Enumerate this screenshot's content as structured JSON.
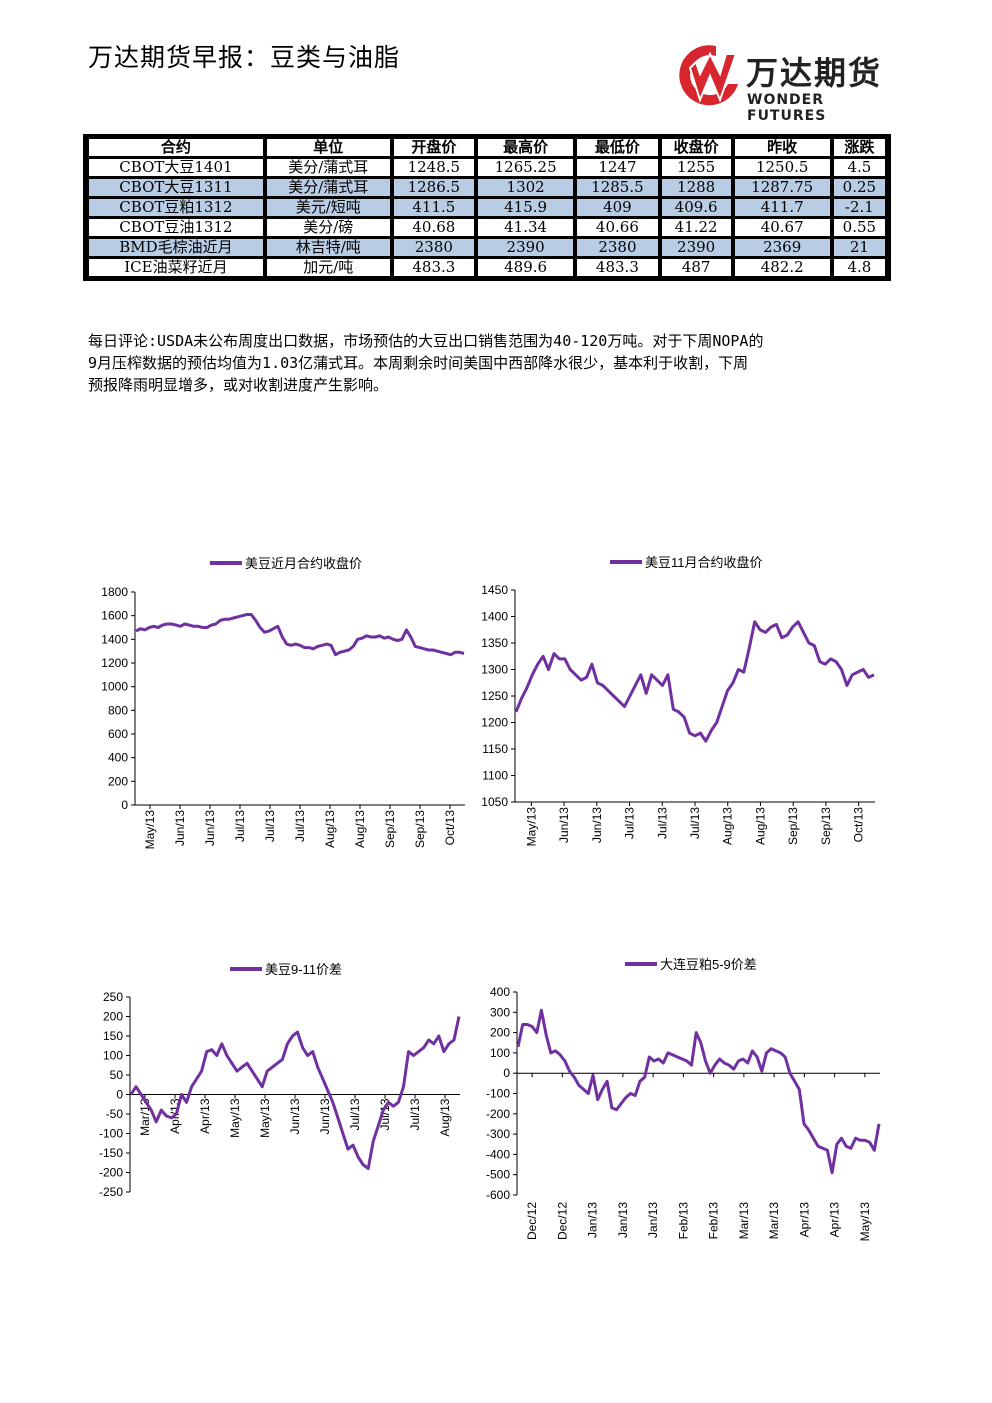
{
  "header": {
    "title": "万达期货早报：豆类与油脂",
    "logo_cn": "万达期货",
    "logo_en": "WONDER FUTURES"
  },
  "table": {
    "headers": [
      "合约",
      "单位",
      "开盘价",
      "最高价",
      "最低价",
      "收盘价",
      "昨收",
      "涨跌"
    ],
    "rows": [
      {
        "highlight": false,
        "cells": [
          "CBOT大豆1401",
          "美分/蒲式耳",
          "1248.5",
          "1265.25",
          "1247",
          "1255",
          "1250.5",
          "4.5"
        ]
      },
      {
        "highlight": true,
        "cells": [
          "CBOT大豆1311",
          "美分/蒲式耳",
          "1286.5",
          "1302",
          "1285.5",
          "1288",
          "1287.75",
          "0.25"
        ]
      },
      {
        "highlight": true,
        "cells": [
          "CBOT豆粕1312",
          "美元/短吨",
          "411.5",
          "415.9",
          "409",
          "409.6",
          "411.7",
          "-2.1"
        ]
      },
      {
        "highlight": false,
        "cells": [
          "CBOT豆油1312",
          "美分/磅",
          "40.68",
          "41.34",
          "40.66",
          "41.22",
          "40.67",
          "0.55"
        ]
      },
      {
        "highlight": true,
        "cells": [
          "BMD毛棕油近月",
          "林吉特/吨",
          "2380",
          "2390",
          "2380",
          "2390",
          "2369",
          "21"
        ]
      },
      {
        "highlight": false,
        "cells": [
          "ICE油菜籽近月",
          "加元/吨",
          "483.3",
          "489.6",
          "483.3",
          "487",
          "482.2",
          "4.8"
        ]
      }
    ]
  },
  "comment": {
    "lines": [
      "每日评论:USDA未公布周度出口数据，市场预估的大豆出口销售范围为40-120万吨。对于下周NOPA的",
      "9月压榨数据的预估均值为1.03亿蒲式耳。本周剩余时间美国中西部降水很少，基本利于收割，下周",
      "预报降雨明显增多，或对收割进度产生影响。"
    ]
  },
  "colors": {
    "series": "#7030a0",
    "highlight": "#b8cce4"
  },
  "chart_data": [
    {
      "type": "line",
      "series": [
        {
          "name": "美豆近月合约收盘价",
          "values": [
            1470,
            1490,
            1480,
            1500,
            1510,
            1500,
            1520,
            1530,
            1530,
            1520,
            1510,
            1530,
            1520,
            1510,
            1510,
            1500,
            1500,
            1520,
            1530,
            1560,
            1570,
            1570,
            1580,
            1590,
            1600,
            1610,
            1610,
            1560,
            1500,
            1460,
            1470,
            1490,
            1510,
            1420,
            1360,
            1350,
            1360,
            1350,
            1330,
            1330,
            1320,
            1340,
            1350,
            1360,
            1350,
            1270,
            1290,
            1300,
            1310,
            1340,
            1400,
            1410,
            1430,
            1420,
            1420,
            1430,
            1410,
            1420,
            1400,
            1390,
            1400,
            1480,
            1420,
            1340,
            1330,
            1320,
            1310,
            1310,
            1300,
            1290,
            1280,
            1270,
            1290,
            1290,
            1280
          ]
        }
      ],
      "x_tick_labels": [
        "May/13",
        "Jun/13",
        "Jun/13",
        "Jul/13",
        "Jul/13",
        "Jul/13",
        "Aug/13",
        "Aug/13",
        "Sep/13",
        "Sep/13",
        "Oct/13"
      ],
      "y_ticks": [
        0,
        200,
        400,
        600,
        800,
        1000,
        1200,
        1400,
        1600,
        1800
      ],
      "ylim": [
        0,
        1800
      ],
      "legend": "top"
    },
    {
      "type": "line",
      "series": [
        {
          "name": "美豆11月合约收盘价",
          "values": [
            1220,
            1245,
            1265,
            1290,
            1310,
            1325,
            1300,
            1330,
            1320,
            1320,
            1300,
            1290,
            1280,
            1285,
            1310,
            1275,
            1270,
            1260,
            1250,
            1240,
            1230,
            1250,
            1270,
            1290,
            1255,
            1290,
            1280,
            1270,
            1290,
            1225,
            1220,
            1210,
            1180,
            1175,
            1180,
            1165,
            1185,
            1200,
            1230,
            1260,
            1275,
            1300,
            1295,
            1340,
            1390,
            1375,
            1370,
            1380,
            1385,
            1360,
            1365,
            1380,
            1390,
            1370,
            1350,
            1345,
            1315,
            1310,
            1320,
            1315,
            1300,
            1270,
            1290,
            1295,
            1300,
            1285,
            1290
          ]
        }
      ],
      "x_tick_labels": [
        "May/13",
        "Jun/13",
        "Jun/13",
        "Jul/13",
        "Jul/13",
        "Jul/13",
        "Aug/13",
        "Aug/13",
        "Sep/13",
        "Sep/13",
        "Oct/13"
      ],
      "y_ticks": [
        1050,
        1100,
        1150,
        1200,
        1250,
        1300,
        1350,
        1400,
        1450
      ],
      "ylim": [
        1050,
        1450
      ],
      "legend": "top"
    },
    {
      "type": "line",
      "series": [
        {
          "name": "美豆9-11价差",
          "values": [
            0,
            20,
            0,
            -20,
            -40,
            -70,
            -40,
            -55,
            -60,
            -50,
            0,
            -20,
            20,
            40,
            60,
            110,
            115,
            100,
            130,
            100,
            80,
            60,
            70,
            80,
            60,
            40,
            20,
            60,
            70,
            80,
            90,
            130,
            150,
            160,
            120,
            100,
            110,
            70,
            40,
            10,
            -20,
            -60,
            -100,
            -140,
            -130,
            -160,
            -180,
            -190,
            -120,
            -80,
            -40,
            -20,
            -30,
            -20,
            20,
            110,
            100,
            110,
            120,
            140,
            130,
            150,
            110,
            130,
            140,
            200
          ]
        }
      ],
      "x_tick_labels": [
        "Mar/13",
        "Apr/13",
        "Apr/13",
        "May/13",
        "May/13",
        "Jun/13",
        "Jun/13",
        "Jul/13",
        "Jul/13",
        "Jul/13",
        "Aug/13"
      ],
      "y_ticks": [
        -250,
        -200,
        -150,
        -100,
        -50,
        0,
        50,
        100,
        150,
        200,
        250
      ],
      "ylim": [
        -250,
        250
      ],
      "legend": "top"
    },
    {
      "type": "line",
      "series": [
        {
          "name": "大连豆粕5-9价差",
          "values": [
            130,
            240,
            240,
            230,
            200,
            310,
            190,
            100,
            110,
            90,
            60,
            10,
            -20,
            -60,
            -80,
            -100,
            -10,
            -130,
            -80,
            -40,
            -170,
            -180,
            -150,
            -120,
            -100,
            -110,
            -40,
            -20,
            80,
            60,
            70,
            50,
            100,
            90,
            80,
            70,
            60,
            40,
            200,
            150,
            60,
            0,
            40,
            70,
            50,
            40,
            20,
            60,
            70,
            50,
            110,
            80,
            10,
            100,
            120,
            110,
            100,
            80,
            0,
            -40,
            -80,
            -250,
            -280,
            -320,
            -360,
            -370,
            -380,
            -490,
            -350,
            -320,
            -360,
            -370,
            -320,
            -330,
            -330,
            -340,
            -380,
            -250
          ]
        }
      ],
      "x_tick_labels": [
        "Dec/12",
        "Dec/12",
        "Jan/13",
        "Jan/13",
        "Jan/13",
        "Feb/13",
        "Feb/13",
        "Mar/13",
        "Mar/13",
        "Apr/13",
        "Apr/13",
        "May/13"
      ],
      "y_ticks": [
        -600,
        -500,
        -400,
        -300,
        -200,
        -100,
        0,
        100,
        200,
        300,
        400
      ],
      "ylim": [
        -600,
        400
      ],
      "legend": "top"
    }
  ]
}
